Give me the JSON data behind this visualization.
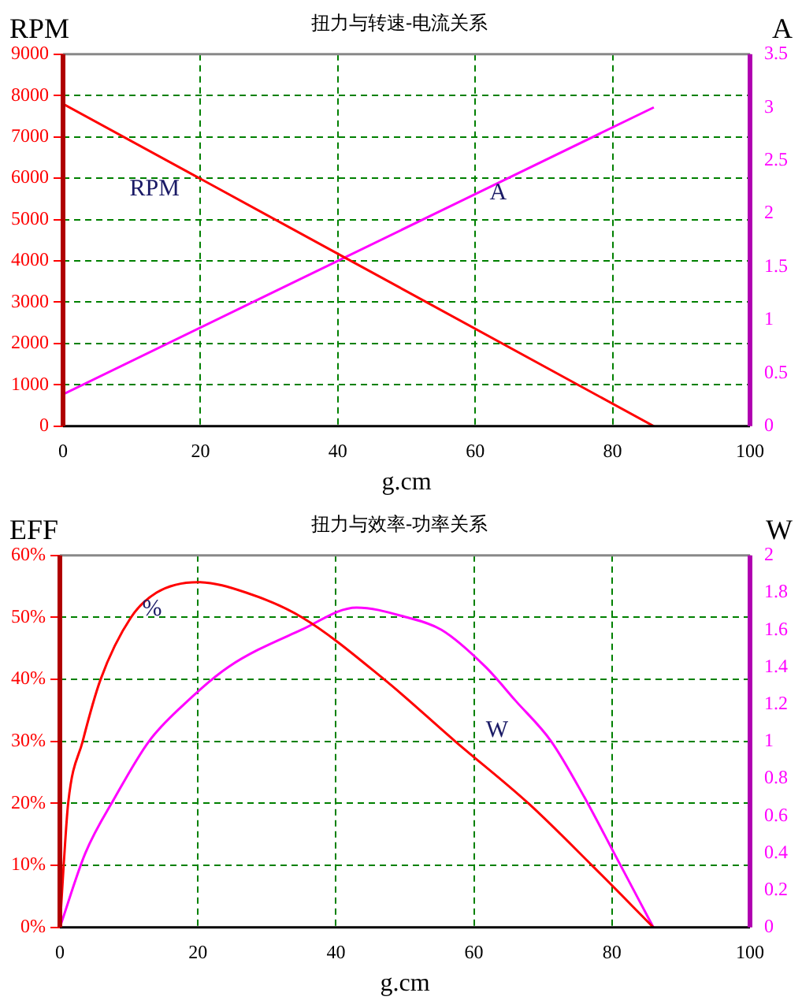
{
  "chart_data": [
    {
      "type": "line",
      "title": "扭力与转速-电流关系",
      "xlabel": "g.cm",
      "ylabel": "RPM",
      "y2label": "A",
      "grid": true,
      "legend": false,
      "marker": "none",
      "line_style": "solid",
      "xlim": [
        0,
        100
      ],
      "xticks": [
        0,
        20,
        40,
        60,
        80,
        100
      ],
      "ylim": [
        0,
        9000
      ],
      "yticks": [
        0,
        1000,
        2000,
        3000,
        4000,
        5000,
        6000,
        7000,
        8000,
        9000
      ],
      "y2lim": [
        0,
        3.5
      ],
      "y2ticks": [
        0,
        0.5,
        1,
        1.5,
        2,
        2.5,
        3,
        3.5
      ],
      "series": [
        {
          "name": "RPM",
          "color": "#ff0000",
          "x": [
            0,
            86
          ],
          "values": [
            7800,
            0
          ]
        },
        {
          "name": "A",
          "color": "#ff00ff",
          "axis": "y2",
          "x": [
            0,
            86
          ],
          "values": [
            0.3,
            3.0
          ]
        }
      ]
    },
    {
      "type": "line",
      "title": "扭力与效率-功率关系",
      "xlabel": "g.cm",
      "ylabel": "EFF",
      "y2label": "W",
      "grid": true,
      "legend": false,
      "marker": "none",
      "line_style": "solid",
      "xlim": [
        0,
        100
      ],
      "xticks": [
        0,
        20,
        40,
        60,
        80,
        100
      ],
      "ylim": [
        0,
        60
      ],
      "yticks": [
        {
          "value": 0,
          "label": "0%"
        },
        {
          "value": 10,
          "label": "10%"
        },
        {
          "value": 20,
          "label": "20%"
        },
        {
          "value": 30,
          "label": "30%"
        },
        {
          "value": 40,
          "label": "40%"
        },
        {
          "value": 50,
          "label": "50%"
        },
        {
          "value": 60,
          "label": "60%"
        }
      ],
      "y2lim": [
        0,
        2
      ],
      "y2ticks": [
        0,
        0.2,
        0.4,
        0.6,
        0.8,
        1,
        1.2,
        1.4,
        1.6,
        1.8,
        2
      ],
      "series": [
        {
          "name": "%",
          "color": "#ff0000",
          "x": [
            0,
            0.55,
            1.2,
            3.3,
            5.9,
            10.3,
            14,
            20,
            27,
            35.1,
            47,
            57.3,
            67.9,
            77.1,
            86
          ],
          "values": [
            0,
            10,
            20,
            30,
            40,
            50,
            54,
            55.7,
            54,
            50,
            40,
            30,
            20,
            10,
            0
          ]
        },
        {
          "name": "W",
          "color": "#ff00ff",
          "axis": "y2",
          "x": [
            0,
            3.7,
            8,
            12.9,
            18,
            24.4,
            35,
            43,
            50,
            55.3,
            61.7,
            66,
            71.2,
            76,
            80.3,
            86
          ],
          "values": [
            0,
            0.4,
            0.7,
            1.0,
            1.2,
            1.4,
            1.6,
            1.72,
            1.67,
            1.6,
            1.4,
            1.22,
            1.0,
            0.7,
            0.4,
            0
          ]
        }
      ]
    }
  ]
}
